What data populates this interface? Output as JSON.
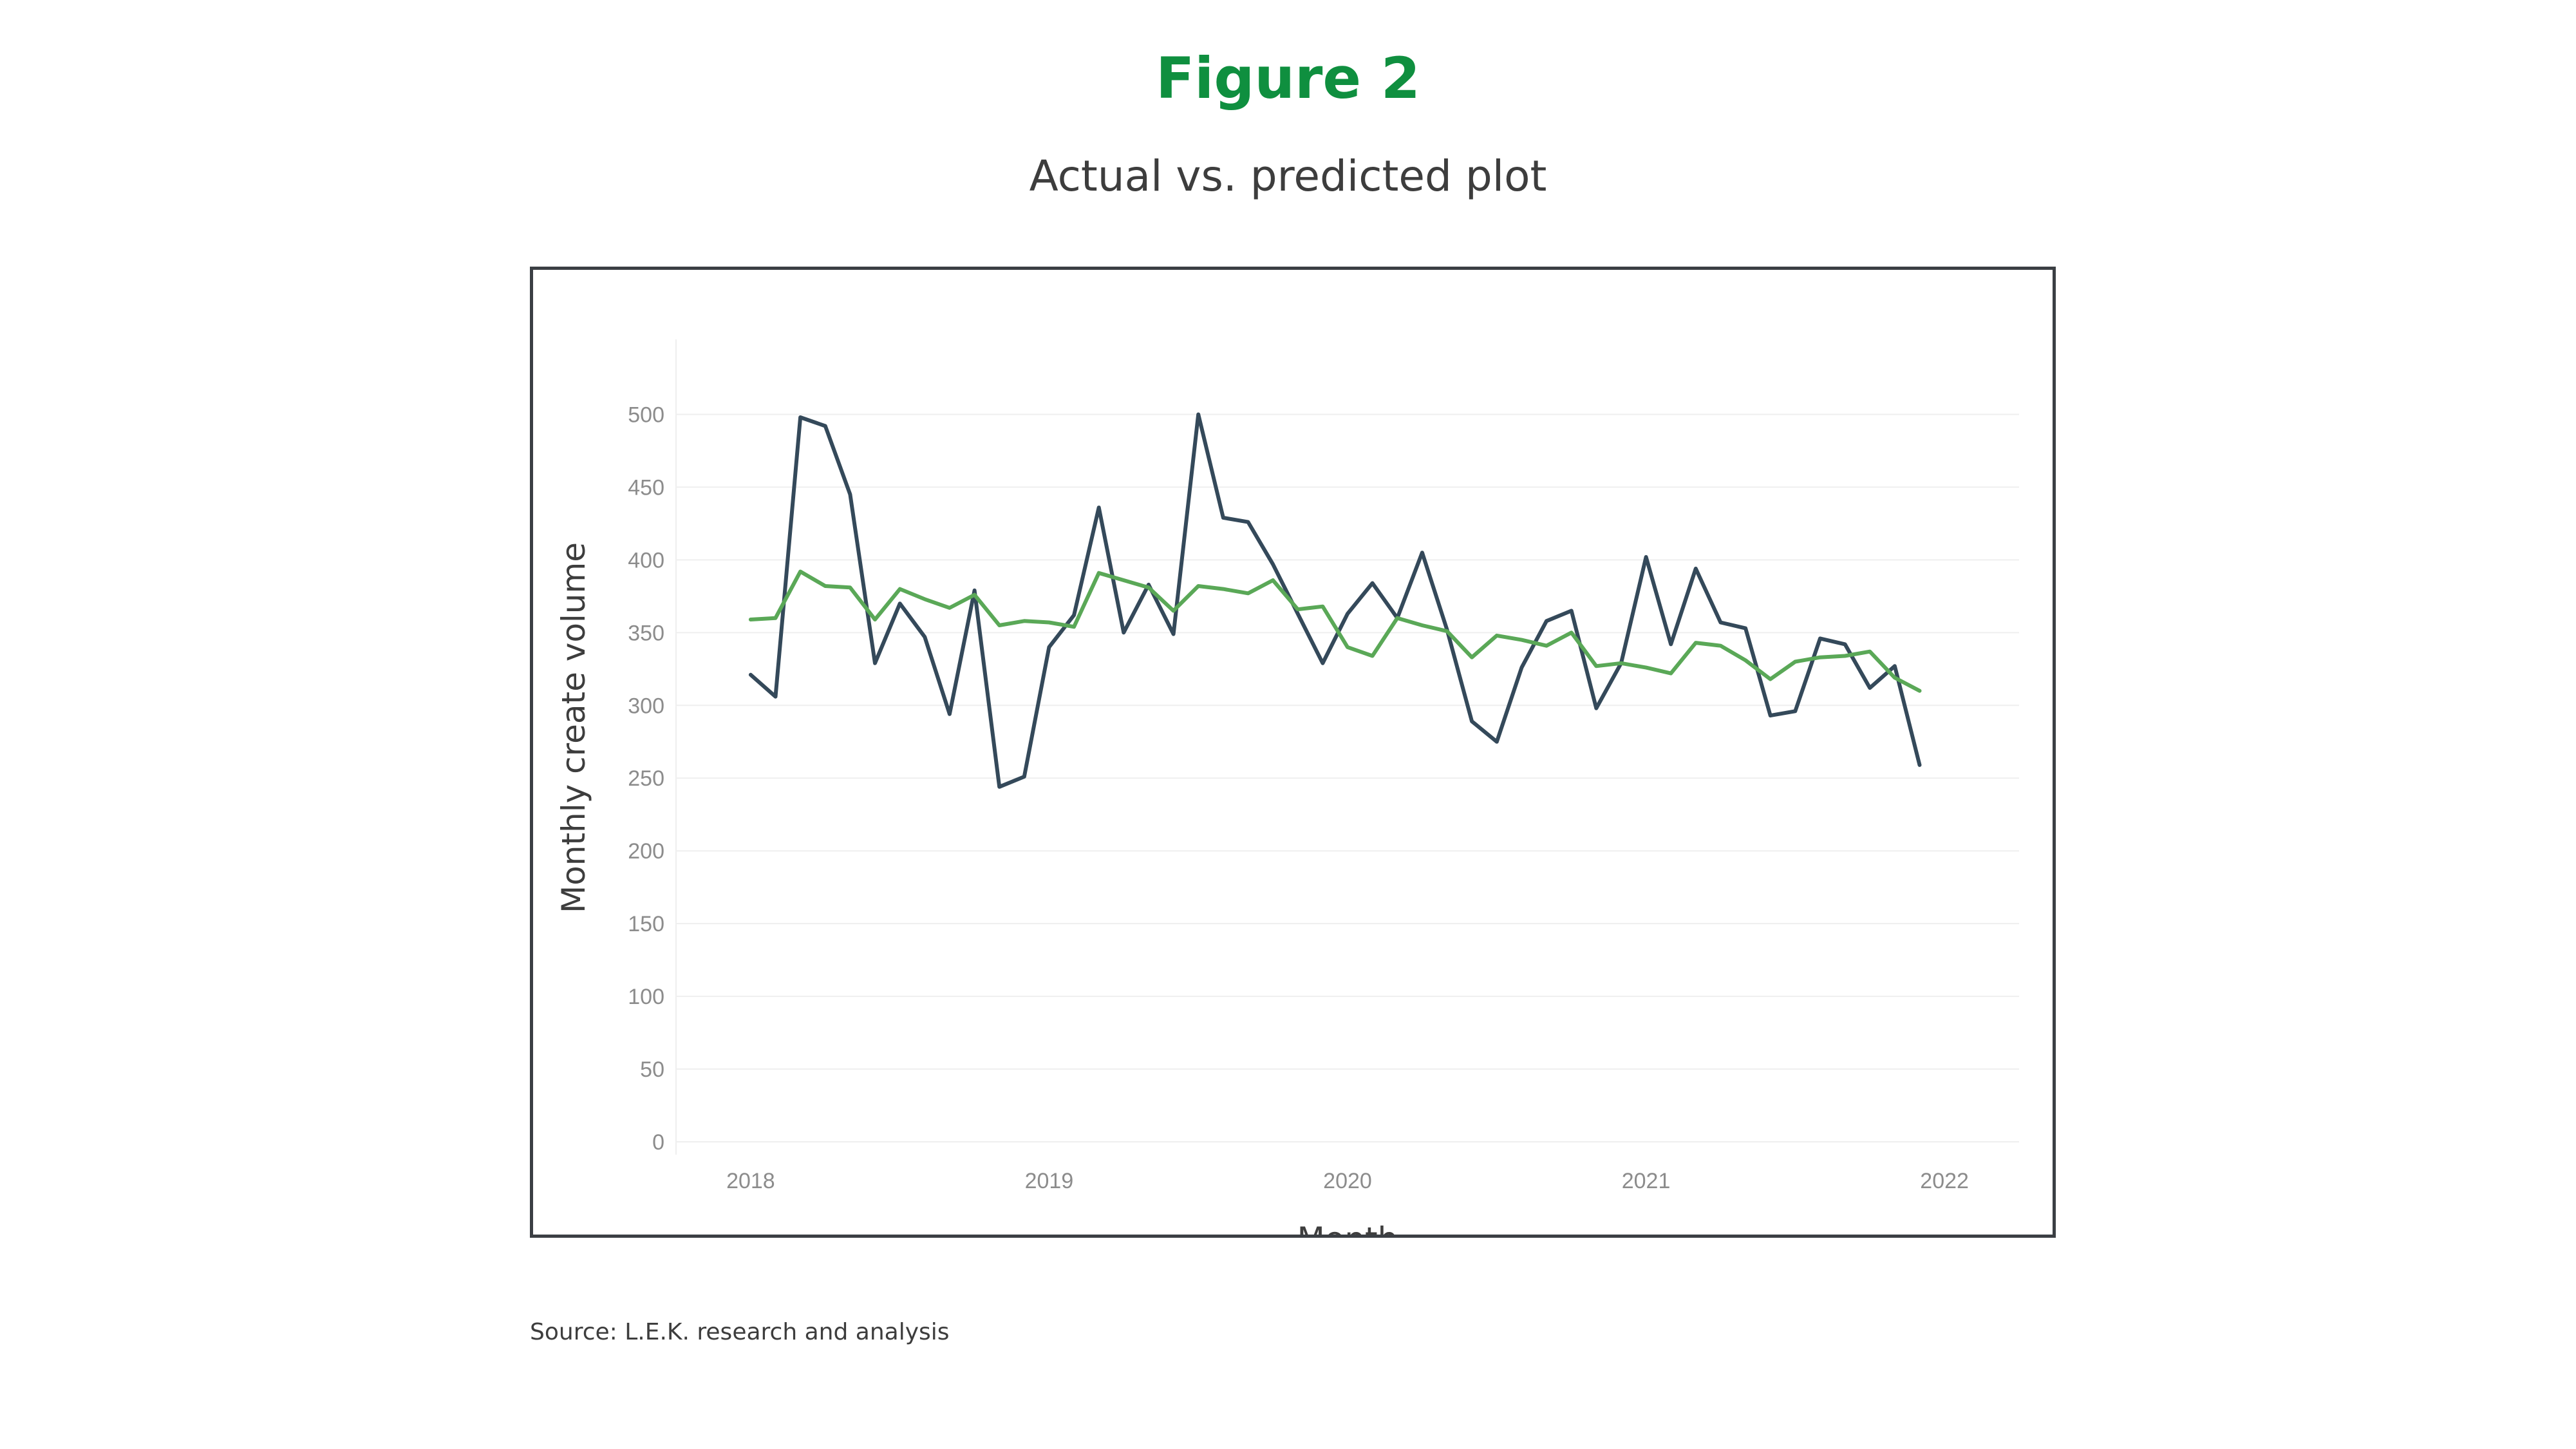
{
  "figure": {
    "title": "Figure 2",
    "subtitle": "Actual vs. predicted plot",
    "source": "Source: L.E.K. research and analysis"
  },
  "colors": {
    "title": "#0f8f3f",
    "actual": "#34495a",
    "predicted": "#5aa857",
    "grid": "#efefef",
    "tick_text": "#8c8c8c",
    "frame": "#3b3f44"
  },
  "chart_data": {
    "type": "line",
    "xlabel": "Month",
    "ylabel": "Monthly create volume",
    "x_ticks": [
      "2018",
      "2019",
      "2020",
      "2021",
      "2022"
    ],
    "y_ticks": [
      0,
      50,
      100,
      150,
      200,
      250,
      300,
      350,
      400,
      450,
      500
    ],
    "ylim": [
      0,
      525
    ],
    "xlim": [
      "2017-10",
      "2022-04"
    ],
    "grid": "horizontal",
    "legend": "none",
    "months": [
      "2018-01",
      "2018-02",
      "2018-03",
      "2018-04",
      "2018-05",
      "2018-06",
      "2018-07",
      "2018-08",
      "2018-09",
      "2018-10",
      "2018-11",
      "2018-12",
      "2019-01",
      "2019-02",
      "2019-03",
      "2019-04",
      "2019-05",
      "2019-06",
      "2019-07",
      "2019-08",
      "2019-09",
      "2019-10",
      "2019-11",
      "2019-12",
      "2020-01",
      "2020-02",
      "2020-03",
      "2020-04",
      "2020-05",
      "2020-06",
      "2020-07",
      "2020-08",
      "2020-09",
      "2020-10",
      "2020-11",
      "2020-12",
      "2021-01",
      "2021-02",
      "2021-03",
      "2021-04",
      "2021-05",
      "2021-06",
      "2021-07",
      "2021-08",
      "2021-09",
      "2021-10",
      "2021-11",
      "2021-12"
    ],
    "series": [
      {
        "color": "#34495a",
        "values": [
          321,
          306,
          498,
          492,
          445,
          329,
          370,
          347,
          294,
          379,
          244,
          251,
          340,
          362,
          436,
          350,
          383,
          349,
          500,
          429,
          426,
          397,
          363,
          329,
          363,
          384,
          360,
          405,
          352,
          289,
          275,
          326,
          358,
          365,
          298,
          329,
          402,
          342,
          394,
          357,
          353,
          293,
          296,
          346,
          342,
          312,
          327,
          259
        ]
      },
      {
        "color": "#5aa857",
        "values": [
          359,
          360,
          392,
          382,
          381,
          359,
          380,
          373,
          367,
          376,
          355,
          358,
          357,
          354,
          391,
          386,
          381,
          365,
          382,
          380,
          377,
          386,
          366,
          368,
          340,
          334,
          360,
          355,
          351,
          333,
          348,
          345,
          341,
          350,
          327,
          329,
          326,
          322,
          343,
          341,
          331,
          318,
          330,
          333,
          334,
          337,
          319,
          310
        ]
      }
    ]
  }
}
